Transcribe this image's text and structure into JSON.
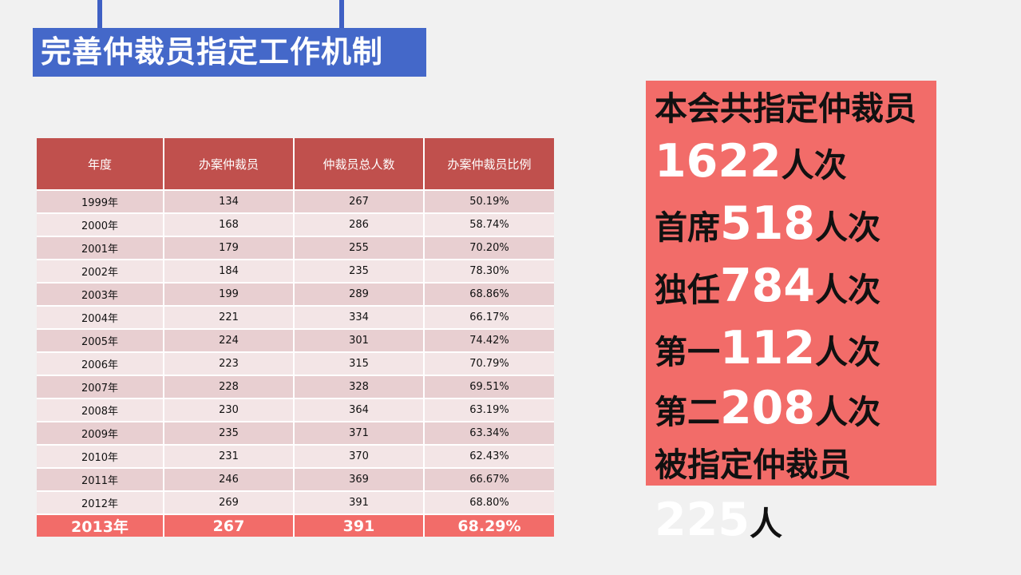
{
  "slide": {
    "title": "完善仲裁员指定工作机制"
  },
  "table": {
    "headers": [
      "年度",
      "办案仲裁员",
      "仲裁员总人数",
      "办案仲裁员比例"
    ],
    "rows": [
      [
        "1999年",
        "134",
        "267",
        "50.19%"
      ],
      [
        "2000年",
        "168",
        "286",
        "58.74%"
      ],
      [
        "2001年",
        "179",
        "255",
        "70.20%"
      ],
      [
        "2002年",
        "184",
        "235",
        "78.30%"
      ],
      [
        "2003年",
        "199",
        "289",
        "68.86%"
      ],
      [
        "2004年",
        "221",
        "334",
        "66.17%"
      ],
      [
        "2005年",
        "224",
        "301",
        "74.42%"
      ],
      [
        "2006年",
        "223",
        "315",
        "70.79%"
      ],
      [
        "2007年",
        "228",
        "328",
        "69.51%"
      ],
      [
        "2008年",
        "230",
        "364",
        "63.19%"
      ],
      [
        "2009年",
        "235",
        "371",
        "63.34%"
      ],
      [
        "2010年",
        "231",
        "370",
        "62.43%"
      ],
      [
        "2011年",
        "246",
        "369",
        "66.67%"
      ],
      [
        "2012年",
        "269",
        "391",
        "68.80%"
      ]
    ],
    "total_row": [
      "2013年",
      "267",
      "391",
      "68.29%"
    ]
  },
  "stats": {
    "line1": "本会共指定仲裁员",
    "total_num": "1622",
    "total_unit": "人次",
    "chief_label": "首席",
    "chief_num": "518",
    "chief_unit": "人次",
    "sole_label": "独任",
    "sole_num": "784",
    "sole_unit": "人次",
    "first_label": "第一",
    "first_num": "112",
    "first_unit": "人次",
    "second_label": "第二",
    "second_num": "208",
    "second_unit": "人次",
    "appointed_label": "被指定仲裁员",
    "appointed_num": "225",
    "appointed_unit": "人"
  },
  "colors": {
    "title_bg": "#4468c9",
    "header_bg": "#c0504d",
    "row_odd": "#e8cfd1",
    "row_even": "#f3e5e6",
    "highlight": "#f26c69"
  }
}
